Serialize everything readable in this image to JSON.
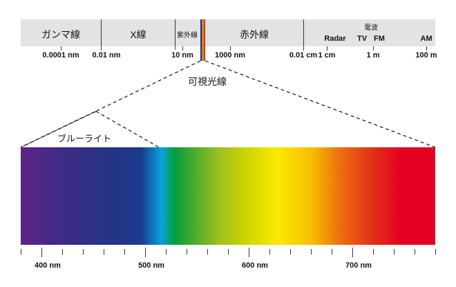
{
  "bands": {
    "gamma": "ガンマ線",
    "xray": "X線",
    "uv": "紫外線",
    "ir": "赤外線",
    "radio": "電波"
  },
  "radio_sub": [
    "Radar",
    "TV",
    "FM",
    "AM"
  ],
  "scale_labels": [
    "0.0001 nm",
    "0.01 nm",
    "10 nm",
    "1000 nm",
    "0.01 cm",
    "1 cm",
    "1 m",
    "100 m"
  ],
  "visible_light": "可視光線",
  "blue_light": "ブルーライト",
  "wavelength_labels": [
    "400 nm",
    "500 nm",
    "600 nm",
    "700 nm"
  ],
  "wavelength_range_nm": [
    380,
    780
  ]
}
